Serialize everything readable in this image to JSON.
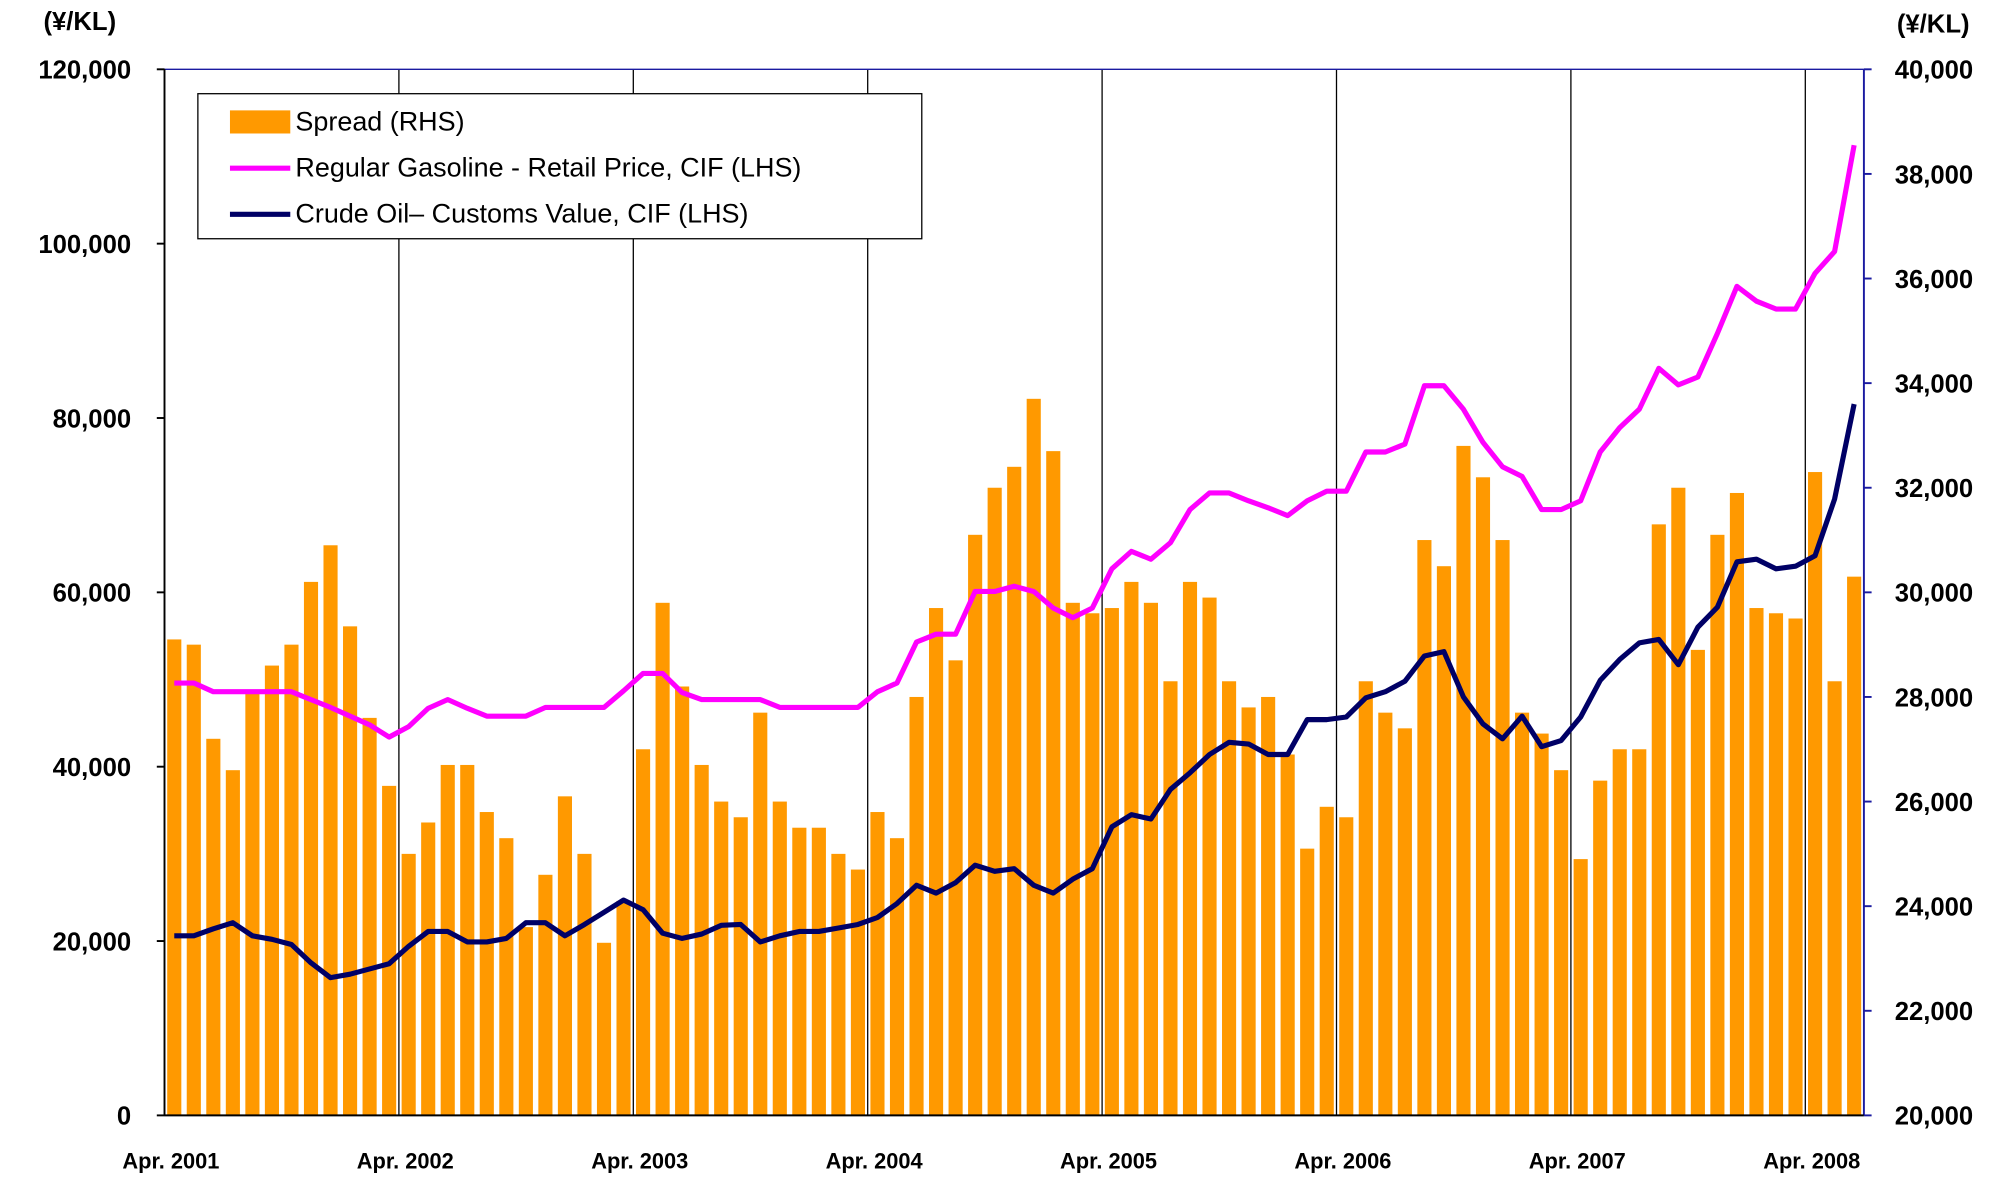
{
  "chart_data": {
    "type": "bar_line",
    "y_label": "(¥/KL)",
    "y2_label": "(¥/KL)",
    "categories": [
      "Apr. 2001",
      null,
      null,
      null,
      null,
      null,
      null,
      null,
      null,
      null,
      null,
      null,
      "Apr. 2002",
      null,
      null,
      null,
      null,
      null,
      null,
      null,
      null,
      null,
      null,
      null,
      "Apr. 2003",
      null,
      null,
      null,
      null,
      null,
      null,
      null,
      null,
      null,
      null,
      null,
      "Apr. 2004",
      null,
      null,
      null,
      null,
      null,
      null,
      null,
      null,
      null,
      null,
      null,
      "Apr. 2005",
      null,
      null,
      null,
      null,
      null,
      null,
      null,
      null,
      null,
      null,
      null,
      "Apr. 2006",
      null,
      null,
      null,
      null,
      null,
      null,
      null,
      null,
      null,
      null,
      null,
      "Apr. 2007",
      null,
      null,
      null,
      null,
      null,
      null,
      null,
      null,
      null,
      null,
      null,
      "Apr. 2008",
      null,
      null
    ],
    "series": [
      {
        "name": "Spread (RHS)",
        "kind": "bar",
        "axis": "y2",
        "color": "#ff9900",
        "values": [
          29100,
          29000,
          27200,
          26600,
          28100,
          28600,
          29000,
          30200,
          30900,
          29350,
          27600,
          26300,
          25000,
          25600,
          26700,
          26700,
          25800,
          25300,
          23600,
          24600,
          26100,
          25000,
          23300,
          24100,
          27000,
          29800,
          28200,
          26700,
          26000,
          25700,
          27700,
          26000,
          25500,
          25500,
          25000,
          24700,
          25800,
          25300,
          28000,
          29700,
          28700,
          31100,
          32000,
          32400,
          33700,
          32700,
          29800,
          29600,
          29700,
          30200,
          29800,
          28300,
          30200,
          29900,
          28300,
          27800,
          28000,
          26900,
          25100,
          25900,
          25700,
          28300,
          27700,
          27400,
          31000,
          30500,
          32800,
          32200,
          31000,
          27700,
          27300,
          26600,
          24900,
          26400,
          27000,
          27000,
          31300,
          32000,
          28900,
          31100,
          31900,
          29700,
          29600,
          29500,
          32300,
          28300,
          30300
        ]
      },
      {
        "name": "Regular Gasoline - Retail Price, CIF (LHS)",
        "kind": "line",
        "color": "#ff00ff",
        "values": [
          49600,
          49600,
          48600,
          48600,
          48600,
          48600,
          48600,
          47700,
          46800,
          45800,
          44800,
          43400,
          44600,
          46700,
          47700,
          46700,
          45800,
          45800,
          45800,
          46800,
          46800,
          46800,
          46800,
          48700,
          50700,
          50700,
          48500,
          47700,
          47700,
          47700,
          47700,
          46800,
          46800,
          46800,
          46800,
          46800,
          48600,
          49600,
          54300,
          55200,
          55200,
          60100,
          60100,
          60700,
          60100,
          58200,
          57100,
          58200,
          62700,
          64700,
          63800,
          65700,
          69500,
          71400,
          71400,
          70500,
          69700,
          68800,
          70500,
          71600,
          71600,
          76100,
          76100,
          77000,
          83700,
          83700,
          81000,
          77200,
          74400,
          73300,
          69500,
          69500,
          70500,
          76100,
          78900,
          81000,
          85700,
          83800,
          84700,
          89700,
          95100,
          93400,
          92500,
          92500,
          96600,
          99100,
          111300
        ]
      },
      {
        "name": "Crude Oil– Customs Value, CIF (LHS)",
        "kind": "line",
        "color": "#000066",
        "values": [
          20600,
          20600,
          21400,
          22100,
          20600,
          20200,
          19600,
          17500,
          15800,
          16200,
          16800,
          17400,
          19400,
          21100,
          21100,
          19900,
          19900,
          20300,
          22100,
          22100,
          20600,
          21900,
          23300,
          24700,
          23600,
          20900,
          20300,
          20800,
          21800,
          21900,
          19900,
          20600,
          21100,
          21100,
          21500,
          21900,
          22700,
          24300,
          26400,
          25500,
          26700,
          28700,
          28000,
          28300,
          26400,
          25500,
          27100,
          28300,
          33100,
          34500,
          34000,
          37400,
          39300,
          41400,
          42800,
          42600,
          41400,
          41400,
          45400,
          45400,
          45700,
          47900,
          48600,
          49800,
          52700,
          53200,
          48000,
          44900,
          43200,
          45800,
          42300,
          43000,
          45700,
          49900,
          52300,
          54200,
          54600,
          51700,
          56000,
          58300,
          63500,
          63800,
          62700,
          63000,
          64200,
          70700,
          81600
        ]
      }
    ],
    "ylim": [
      0,
      120000
    ],
    "yticks": [
      0,
      {
        "value": 20000,
        "label": "20,000"
      },
      {
        "value": 40000,
        "label": "40,000"
      },
      {
        "value": 60000,
        "label": "60,000"
      },
      {
        "value": 80000,
        "label": "80,000"
      },
      {
        "value": 100000,
        "label": "100,000"
      },
      {
        "value": 120000,
        "label": "120,000"
      }
    ],
    "y2lim": [
      20000,
      40000
    ],
    "y2ticks": [
      {
        "value": 20000,
        "label": "20,000"
      },
      {
        "value": 22000,
        "label": "22,000"
      },
      {
        "value": 24000,
        "label": "24,000"
      },
      {
        "value": 26000,
        "label": "26,000"
      },
      {
        "value": 28000,
        "label": "28,000"
      },
      {
        "value": 30000,
        "label": "30,000"
      },
      {
        "value": 32000,
        "label": "32,000"
      },
      {
        "value": 34000,
        "label": "34,000"
      },
      {
        "value": 36000,
        "label": "36,000"
      },
      {
        "value": 38000,
        "label": "38,000"
      },
      {
        "value": 40000,
        "label": "40,000"
      }
    ],
    "legend": "upper left",
    "vertical_grid": true
  }
}
